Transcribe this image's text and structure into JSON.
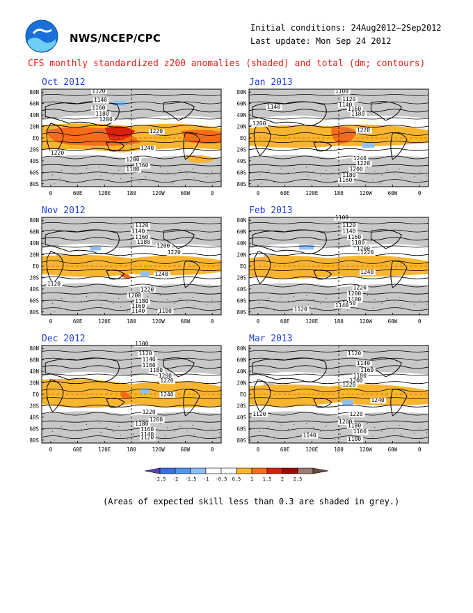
{
  "header": {
    "agency": "NWS/NCEP/CPC",
    "initial_conditions": "Initial conditions: 24Aug2012–2Sep2012",
    "last_update": "Last update: Mon Sep 24 2012",
    "title": "CFS monthly standardized z200 anomalies (shaded) and total (dm; contours)",
    "logo_icon": "noaa-logo-icon"
  },
  "axes": {
    "lat_labels": [
      "80N",
      "60N",
      "40N",
      "20N",
      "EQ",
      "20S",
      "40S",
      "60S",
      "80S"
    ],
    "lon_labels": [
      "0",
      "60E",
      "120E",
      "180",
      "120W",
      "60W",
      "0"
    ]
  },
  "panels": [
    {
      "title": "Oct 2012",
      "contour_labels": [
        "1120",
        "1140",
        "1160",
        "1180",
        "1200",
        "1220",
        "1240",
        "1160",
        "1180",
        "1200",
        "1220"
      ]
    },
    {
      "title": "Jan 2013",
      "contour_labels": [
        "1100",
        "1120",
        "1140",
        "1160",
        "1180",
        "1200",
        "1220",
        "1240",
        "1220",
        "1200",
        "1180",
        "1160",
        "1140"
      ]
    },
    {
      "title": "Nov 2012",
      "contour_labels": [
        "1120",
        "1140",
        "1160",
        "1180",
        "1200",
        "1220",
        "1240",
        "1220",
        "1200",
        "1180",
        "1160",
        "1140",
        "1120",
        "1100"
      ]
    },
    {
      "title": "Feb 2013",
      "contour_labels": [
        "1100",
        "1120",
        "1140",
        "1160",
        "1180",
        "1200",
        "1220",
        "1240",
        "1220",
        "1200",
        "1180",
        "1160",
        "1140",
        "1120"
      ]
    },
    {
      "title": "Dec 2012",
      "contour_labels": [
        "1100",
        "1120",
        "1140",
        "1160",
        "1180",
        "1200",
        "1220",
        "1240",
        "1220",
        "1200",
        "1180",
        "1160",
        "1140",
        "1120"
      ]
    },
    {
      "title": "Mar 2013",
      "contour_labels": [
        "1120",
        "1140",
        "1160",
        "1180",
        "1200",
        "1220",
        "1240",
        "1220",
        "1200",
        "1180",
        "1160",
        "1140",
        "1120",
        "1100"
      ]
    }
  ],
  "colorbar": {
    "labels": [
      "-2.5",
      "-2",
      "-1.5",
      "-1",
      "-0.5",
      "0.5",
      "1",
      "1.5",
      "2",
      "2.5"
    ],
    "colors": [
      "#5a3fbf",
      "#3a6fe0",
      "#4f96ec",
      "#8fc0f5",
      "#ffffff",
      "#ffffff",
      "#f8b530",
      "#f76c1a",
      "#d6200c",
      "#9c0a06",
      "#a07a6e",
      "#6e4a3a"
    ]
  },
  "colors": {
    "title_red": "#e0201a",
    "panel_title_blue": "#2040e0",
    "low_skill_grey": "#c8c8c8",
    "anom_05_1": "#f8b530",
    "anom_1_15": "#f76c1a",
    "anom_15_2": "#d6200c",
    "anom_neg": "#8fc0f5"
  },
  "caption": "(Areas of expected skill less than 0.3 are shaded in grey.)"
}
